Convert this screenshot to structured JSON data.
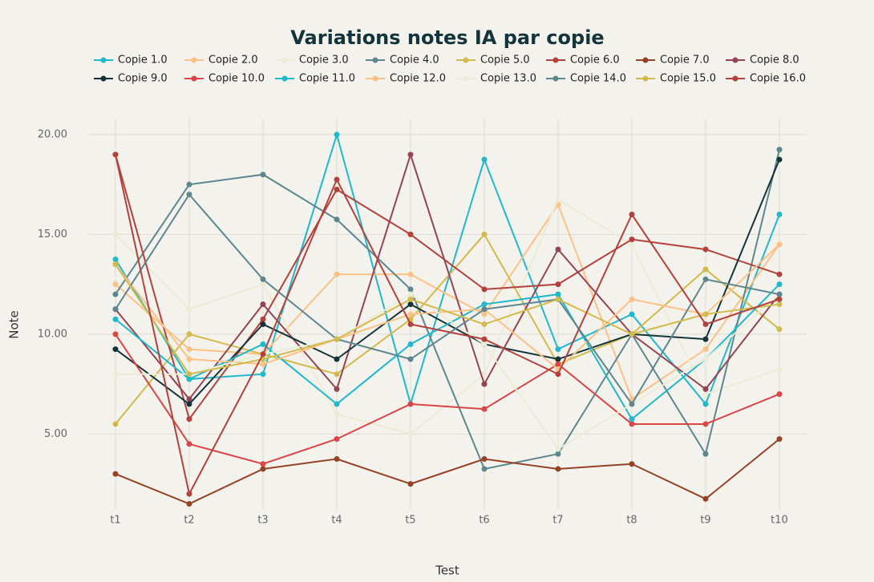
{
  "chart_data": {
    "type": "line",
    "title": "Variations notes IA par copie",
    "xlabel": "Test",
    "ylabel": "Note",
    "categories": [
      "t1",
      "t2",
      "t3",
      "t4",
      "t5",
      "t6",
      "t7",
      "t8",
      "t9",
      "t10"
    ],
    "ylim": [
      1.2,
      20.8
    ],
    "yticks": [
      {
        "value": 5,
        "label": "5.00"
      },
      {
        "value": 10,
        "label": "10.00"
      },
      {
        "value": 15,
        "label": "15.00"
      },
      {
        "value": 20,
        "label": "20.00"
      }
    ],
    "grid": true,
    "legend": "top",
    "series": [
      {
        "name": "Copie 1.0",
        "color": "#1fb8cd",
        "values": [
          13.75,
          7.75,
          8.0,
          20.0,
          6.5,
          18.75,
          9.25,
          11.0,
          6.5,
          16.0
        ]
      },
      {
        "name": "Copie 2.0",
        "color": "#ffc185",
        "values": [
          12.5,
          9.25,
          9.0,
          13.0,
          13.0,
          11.0,
          16.5,
          6.75,
          9.25,
          14.5
        ]
      },
      {
        "name": "Copie 3.0",
        "color": "#eceBd5",
        "values": [
          15.0,
          11.25,
          12.5,
          6.0,
          5.0,
          8.0,
          16.75,
          14.5,
          7.0,
          8.25
        ]
      },
      {
        "name": "Copie 4.0",
        "color": "#5d878f",
        "values": [
          12.0,
          17.5,
          18.0,
          15.75,
          12.25,
          3.25,
          4.0,
          10.0,
          4.0,
          19.25
        ]
      },
      {
        "name": "Copie 5.0",
        "color": "#d2ba4c",
        "values": [
          5.5,
          10.0,
          9.0,
          8.0,
          10.75,
          15.0,
          8.5,
          10.0,
          13.25,
          10.25
        ]
      },
      {
        "name": "Copie 6.0",
        "color": "#b4413c",
        "values": [
          19.0,
          5.75,
          10.75,
          17.25,
          15.0,
          12.25,
          12.5,
          14.75,
          14.25,
          13.0
        ]
      },
      {
        "name": "Copie 7.0",
        "color": "#964325",
        "values": [
          3.0,
          1.5,
          3.25,
          3.75,
          2.5,
          3.75,
          3.25,
          3.5,
          1.75,
          4.75
        ]
      },
      {
        "name": "Copie 8.0",
        "color": "#944454",
        "values": [
          11.25,
          6.75,
          11.5,
          7.25,
          19.0,
          7.5,
          14.25,
          10.0,
          7.25,
          12.0
        ]
      },
      {
        "name": "Copie 9.0",
        "color": "#13343b",
        "values": [
          9.25,
          6.5,
          10.5,
          8.75,
          11.5,
          9.5,
          8.75,
          10.0,
          9.75,
          18.75
        ]
      },
      {
        "name": "Copie 10.0",
        "color": "#db4545",
        "values": [
          10.0,
          4.5,
          3.5,
          4.75,
          6.5,
          6.25,
          8.5,
          5.5,
          5.5,
          7.0
        ]
      },
      {
        "name": "Copie 11.0",
        "color": "#1fb8cd",
        "values": [
          10.75,
          7.75,
          9.5,
          6.5,
          9.5,
          11.5,
          12.0,
          5.75,
          8.75,
          12.5
        ]
      },
      {
        "name": "Copie 12.0",
        "color": "#ffc185",
        "values": [
          13.5,
          8.75,
          8.5,
          9.75,
          11.0,
          11.25,
          8.25,
          11.75,
          11.0,
          14.5
        ]
      },
      {
        "name": "Copie 13.0",
        "color": "#eceBd5",
        "values": [
          8.0,
          8.0,
          9.0,
          9.75,
          12.0,
          9.5,
          4.25,
          6.5,
          8.75,
          12.0
        ]
      },
      {
        "name": "Copie 14.0",
        "color": "#5d878f",
        "values": [
          11.25,
          17.0,
          12.75,
          9.75,
          8.75,
          11.25,
          11.75,
          6.5,
          12.75,
          12.0
        ]
      },
      {
        "name": "Copie 15.0",
        "color": "#d2ba4c",
        "values": [
          13.5,
          8.0,
          8.75,
          9.75,
          11.75,
          10.5,
          11.75,
          10.0,
          11.0,
          11.5
        ]
      },
      {
        "name": "Copie 16.0",
        "color": "#b4413c",
        "values": [
          19.0,
          2.0,
          9.0,
          17.75,
          10.5,
          9.75,
          8.0,
          16.0,
          10.5,
          11.75
        ]
      }
    ]
  }
}
